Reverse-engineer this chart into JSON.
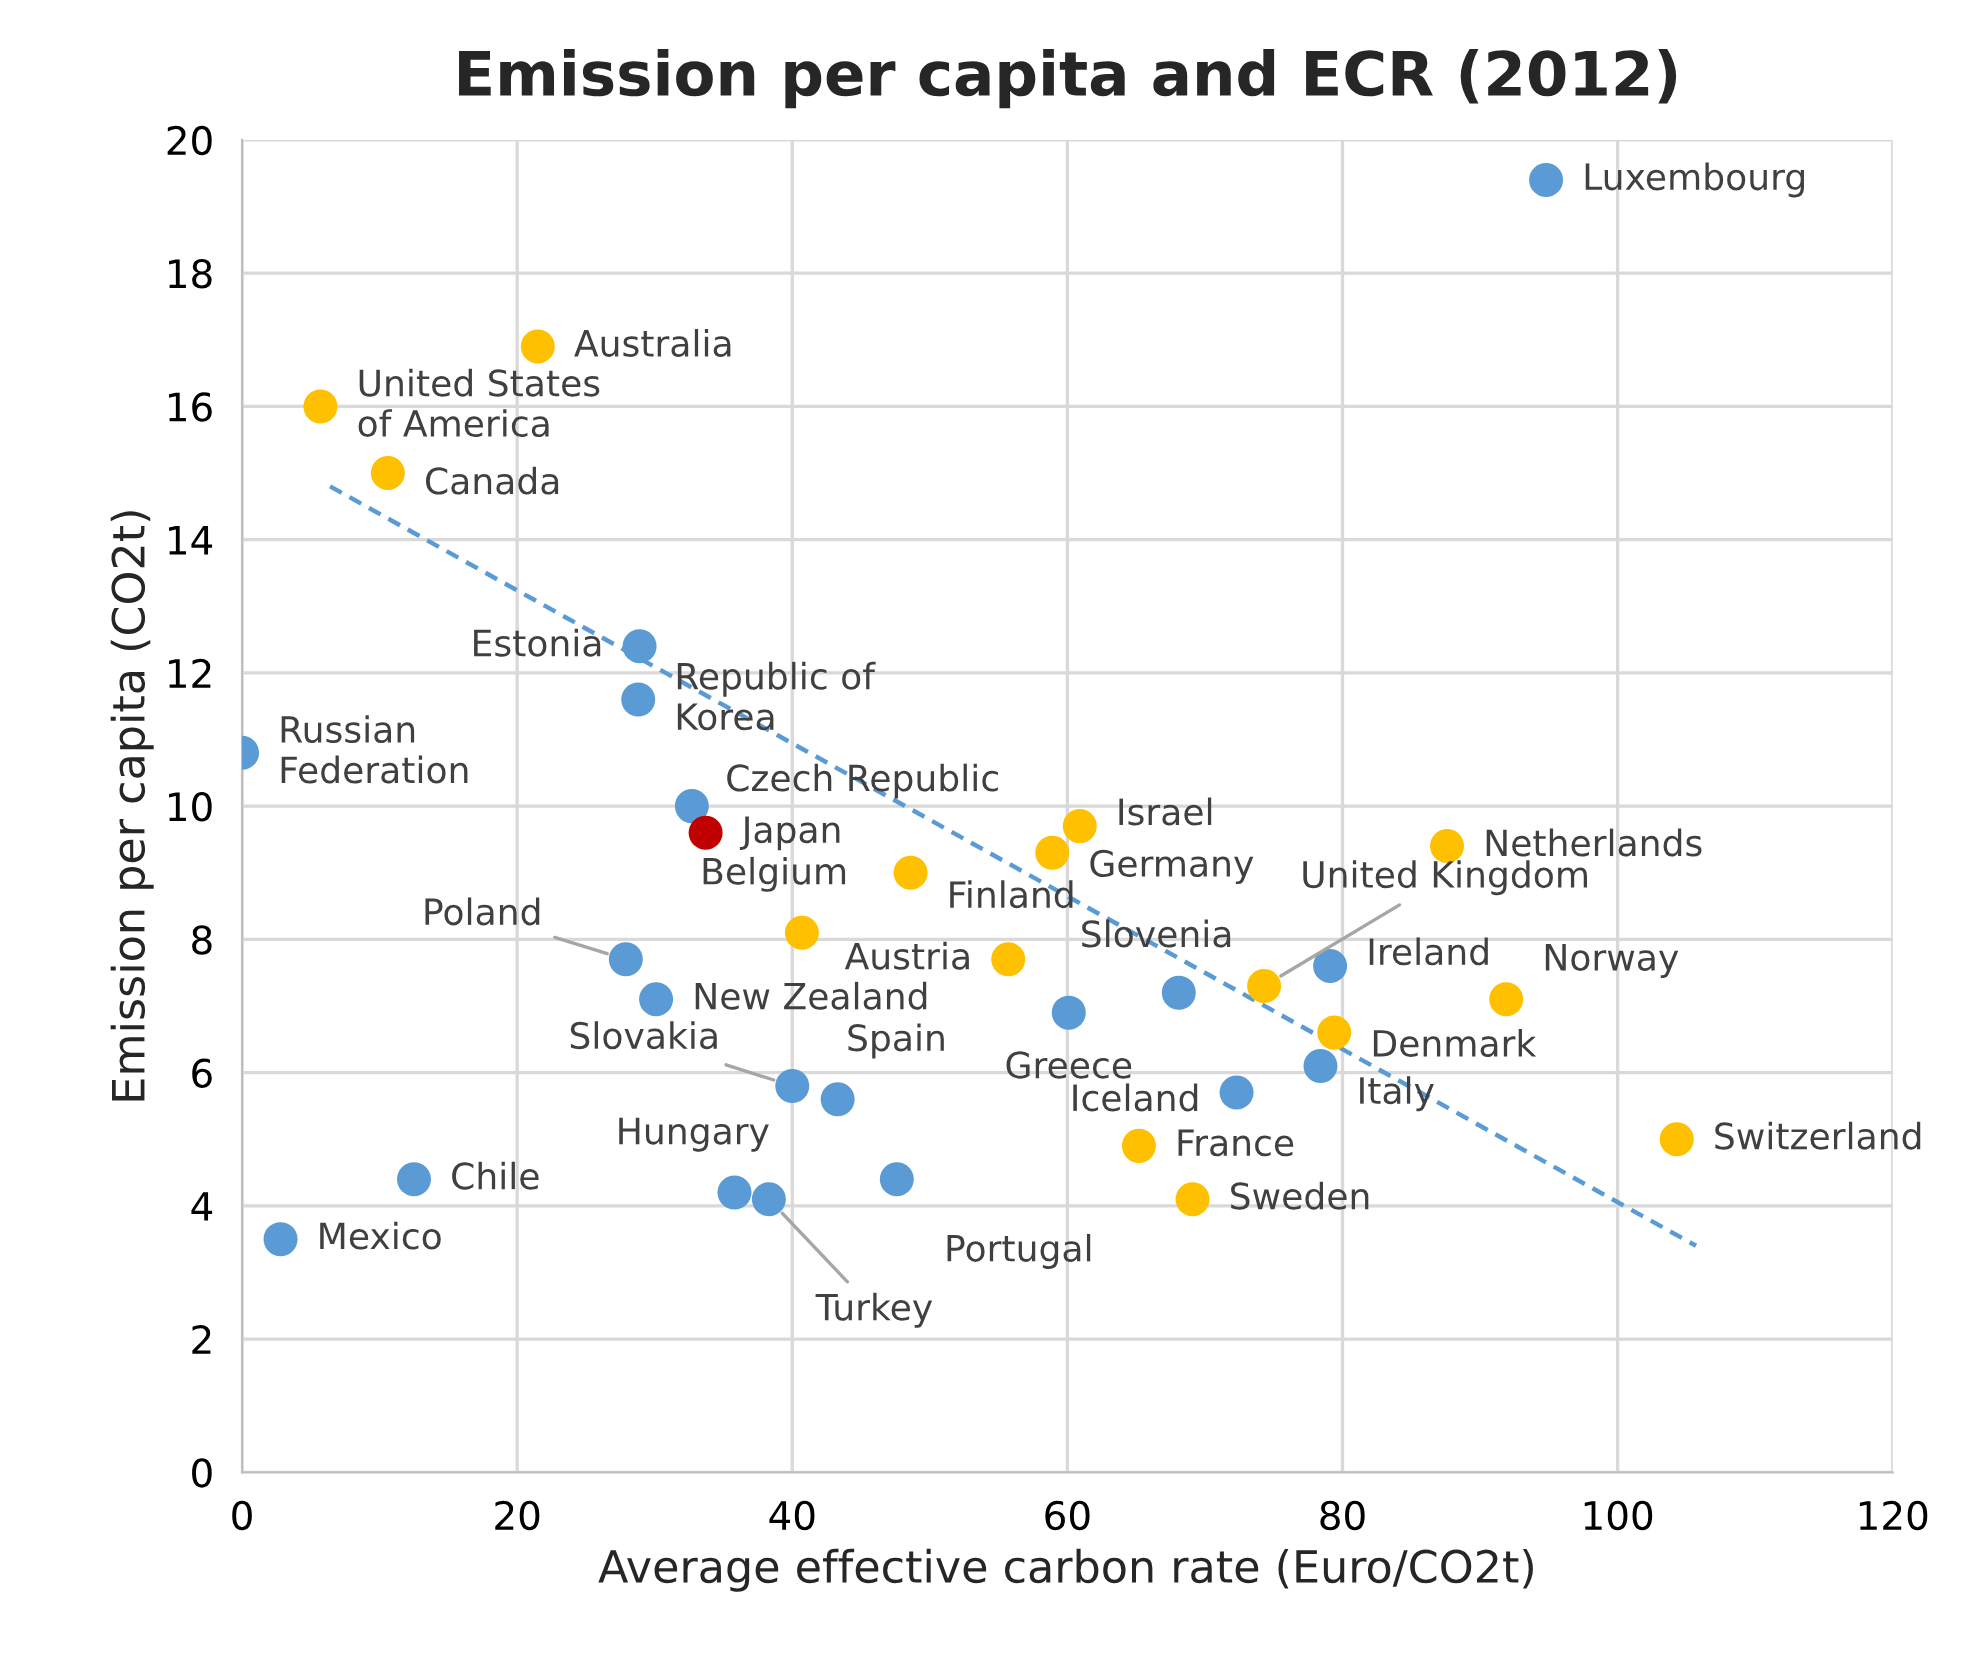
{
  "chart_data": {
    "type": "scatter",
    "title": "Emission per capita and ECR (2012)",
    "xlabel": "Average effective carbon rate (Euro/CO2t)",
    "ylabel": "Emission per capita (CO2t)",
    "xlim": [
      0,
      120
    ],
    "xticks": [
      0,
      20,
      40,
      60,
      80,
      100,
      120
    ],
    "ylim": [
      0,
      20
    ],
    "yticks": [
      0,
      2,
      4,
      6,
      8,
      10,
      12,
      14,
      16,
      18,
      20
    ],
    "grid": true,
    "marker": "circle",
    "series": [
      {
        "color": "#5b9bd5",
        "x": [
          94.8,
          28.9,
          28.8,
          0.0,
          32.7,
          27.9,
          30.1,
          40.0,
          43.3,
          60.1,
          68.1,
          79.1,
          72.3,
          78.4,
          12.5,
          2.8,
          35.8,
          38.3,
          47.6
        ],
        "values": [
          19.4,
          12.4,
          11.6,
          10.8,
          10.0,
          7.7,
          7.1,
          5.8,
          5.6,
          6.9,
          7.2,
          7.6,
          5.7,
          6.1,
          4.4,
          3.5,
          4.2,
          4.1,
          4.4
        ]
      },
      {
        "color": "#ffc000",
        "x": [
          21.5,
          5.7,
          10.6,
          48.6,
          60.9,
          58.9,
          40.7,
          55.7,
          87.6,
          91.9,
          74.3,
          79.4,
          104.3,
          65.2,
          69.1
        ],
        "values": [
          16.9,
          16.0,
          15.0,
          9.0,
          9.7,
          9.3,
          8.1,
          7.7,
          9.4,
          7.1,
          7.3,
          6.6,
          5.0,
          4.9,
          4.1
        ]
      },
      {
        "color": "#c00000",
        "x": [
          33.7
        ],
        "values": [
          9.6
        ]
      },
      {
        "type": "line",
        "color": "#5b9bd5",
        "line_style": "dashed",
        "marker": "none",
        "x": [
          6.4,
          105.7
        ],
        "values": [
          14.8,
          3.4
        ]
      }
    ],
    "annotations": [
      {
        "text": "Luxembourg",
        "x": 94.8,
        "y": 19.4
      },
      {
        "text": "Estonia",
        "x": 28.9,
        "y": 12.4
      },
      {
        "text": "Republic of\nKorea",
        "x": 28.8,
        "y": 11.6
      },
      {
        "text": "Russian\nFederation",
        "x": 0.0,
        "y": 10.8
      },
      {
        "text": "Czech Republic",
        "x": 32.7,
        "y": 10.0
      },
      {
        "text": "Poland",
        "x": 27.9,
        "y": 7.7
      },
      {
        "text": "New Zealand",
        "x": 30.1,
        "y": 7.1
      },
      {
        "text": "Slovakia",
        "x": 40.0,
        "y": 5.8
      },
      {
        "text": "Spain",
        "x": 43.3,
        "y": 5.6
      },
      {
        "text": "Greece",
        "x": 60.1,
        "y": 6.9
      },
      {
        "text": "Slovenia",
        "x": 68.1,
        "y": 7.2
      },
      {
        "text": "Ireland",
        "x": 79.1,
        "y": 7.6
      },
      {
        "text": "Iceland",
        "x": 72.3,
        "y": 5.7
      },
      {
        "text": "Italy",
        "x": 78.4,
        "y": 6.1
      },
      {
        "text": "Chile",
        "x": 12.5,
        "y": 4.4
      },
      {
        "text": "Mexico",
        "x": 2.8,
        "y": 3.5
      },
      {
        "text": "Hungary",
        "x": 35.8,
        "y": 4.2
      },
      {
        "text": "Turkey",
        "x": 38.3,
        "y": 4.1
      },
      {
        "text": "Portugal",
        "x": 47.6,
        "y": 4.4
      },
      {
        "text": "Australia",
        "x": 21.5,
        "y": 16.9
      },
      {
        "text": "United States\nof America",
        "x": 5.7,
        "y": 16.0
      },
      {
        "text": "Canada",
        "x": 10.6,
        "y": 15.0
      },
      {
        "text": "Finland",
        "x": 48.6,
        "y": 9.0
      },
      {
        "text": "Israel",
        "x": 60.9,
        "y": 9.7
      },
      {
        "text": "Germany",
        "x": 58.9,
        "y": 9.3
      },
      {
        "text": "Belgium",
        "x": 40.7,
        "y": 8.1
      },
      {
        "text": "Austria",
        "x": 55.7,
        "y": 7.7
      },
      {
        "text": "Netherlands",
        "x": 87.6,
        "y": 9.4
      },
      {
        "text": "Norway",
        "x": 91.9,
        "y": 7.1
      },
      {
        "text": "United Kingdom",
        "x": 74.3,
        "y": 7.3
      },
      {
        "text": "Denmark",
        "x": 79.4,
        "y": 6.6
      },
      {
        "text": "Switzerland",
        "x": 104.3,
        "y": 5.0
      },
      {
        "text": "France",
        "x": 65.2,
        "y": 4.9
      },
      {
        "text": "Sweden",
        "x": 69.1,
        "y": 4.1
      },
      {
        "text": "Japan",
        "x": 33.7,
        "y": 9.6
      }
    ]
  }
}
